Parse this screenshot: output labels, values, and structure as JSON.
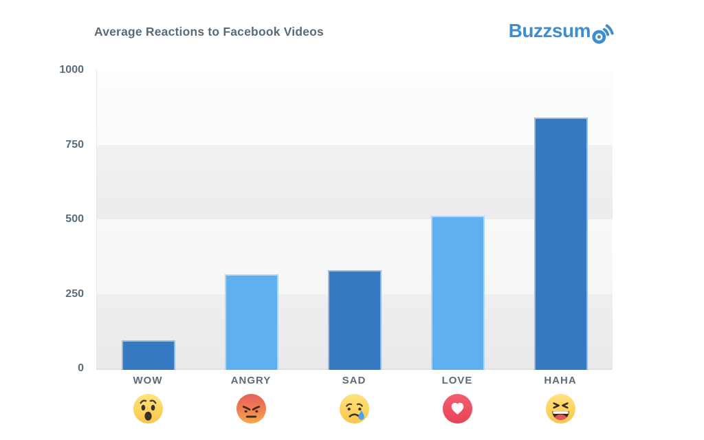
{
  "header": {
    "title": "Average Reactions to Facebook Videos",
    "logo_text": "Buzzsum",
    "logo_full_name": "Buzzsumo",
    "logo_icon": "signal-o-icon"
  },
  "chart_data": {
    "type": "bar",
    "title": "Average Reactions to Facebook Videos",
    "categories": [
      "WOW",
      "ANGRY",
      "SAD",
      "LOVE",
      "HAHA"
    ],
    "values": [
      100,
      320,
      335,
      517,
      845
    ],
    "xlabel": "",
    "ylabel": "",
    "ylim": [
      0,
      1000
    ],
    "yticks": [
      0,
      250,
      500,
      750,
      1000
    ],
    "grid": "alternating-horizontal-bands",
    "legend": "none",
    "bar_colors": [
      "#3579c2",
      "#5fb0f0",
      "#3579c2",
      "#5fb0f0",
      "#3579c2"
    ],
    "icons": [
      "wow-emoji",
      "angry-emoji",
      "sad-emoji",
      "love-emoji",
      "haha-emoji"
    ]
  },
  "colors": {
    "bar_dark_blue": "#3579c2",
    "bar_light_blue": "#5fb0f0",
    "logo_blue": "#3e8ecf",
    "text_slate": "#5a6a78",
    "love_red": "#ee4d61",
    "tear_blue": "#4aa0f4",
    "emoji_yellow": "#f8c748"
  }
}
